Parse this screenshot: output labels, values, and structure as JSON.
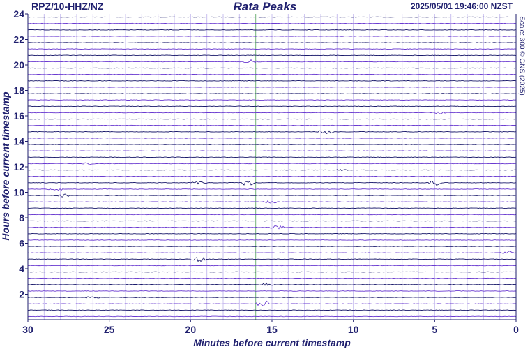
{
  "header": {
    "station": "RPZ/10-HHZ/NZ",
    "title": "Rata Peaks",
    "timestamp": "2025/05/01 19:46:00 NZST",
    "scale": "Scale: 300 © GNS (2025)"
  },
  "chart_data": {
    "type": "helicorder",
    "xlabel": "Minutes before current timestamp",
    "ylabel": "Hours before current timestamp",
    "xlim": [
      30,
      0
    ],
    "ylim": [
      0,
      24
    ],
    "x_ticks": [
      "30",
      "25",
      "20",
      "15",
      "10",
      "5",
      "0"
    ],
    "y_ticks": [
      "2",
      "4",
      "6",
      "8",
      "10",
      "12",
      "14",
      "16",
      "18",
      "20",
      "22",
      "24"
    ],
    "x_grid_minutes": [
      29,
      28,
      27,
      26,
      25,
      24,
      23,
      22,
      21,
      20,
      19,
      18,
      17,
      16,
      15,
      14,
      13,
      12,
      11,
      10,
      9,
      8,
      7,
      6,
      5,
      4,
      3,
      2,
      1
    ],
    "current_time_minutes": 16,
    "trace_colors": [
      "#1a1a6b",
      "#6a3ad0"
    ],
    "gridline_color": "#7fbf7f",
    "trace_count": 48,
    "events": [
      {
        "hour": 20.2,
        "minute": 16.3,
        "amplitude": 3
      },
      {
        "hour": 16.3,
        "minute": 4.7,
        "amplitude": 2
      },
      {
        "hour": 14.7,
        "minute": 11.7,
        "amplitude": 5
      },
      {
        "hour": 12.2,
        "minute": 26.3,
        "amplitude": 2
      },
      {
        "hour": 11.8,
        "minute": 10.8,
        "amplitude": 2
      },
      {
        "hour": 10.8,
        "minute": 19.5,
        "amplitude": 3
      },
      {
        "hour": 10.8,
        "minute": 16.5,
        "amplitude": 5
      },
      {
        "hour": 10.8,
        "minute": 5.0,
        "amplitude": 5
      },
      {
        "hour": 10.3,
        "minute": 28.3,
        "amplitude": 4
      },
      {
        "hour": 9.8,
        "minute": 27.7,
        "amplitude": 3
      },
      {
        "hour": 9.2,
        "minute": 15.0,
        "amplitude": 4
      },
      {
        "hour": 7.3,
        "minute": 14.7,
        "amplitude": 4
      },
      {
        "hour": 5.3,
        "minute": 0.5,
        "amplitude": 3
      },
      {
        "hour": 4.7,
        "minute": 19.5,
        "amplitude": 5
      },
      {
        "hour": 2.8,
        "minute": 15.3,
        "amplitude": 3
      },
      {
        "hour": 1.7,
        "minute": 26.0,
        "amplitude": 3
      },
      {
        "hour": 1.2,
        "minute": 15.5,
        "amplitude": 6
      }
    ]
  }
}
